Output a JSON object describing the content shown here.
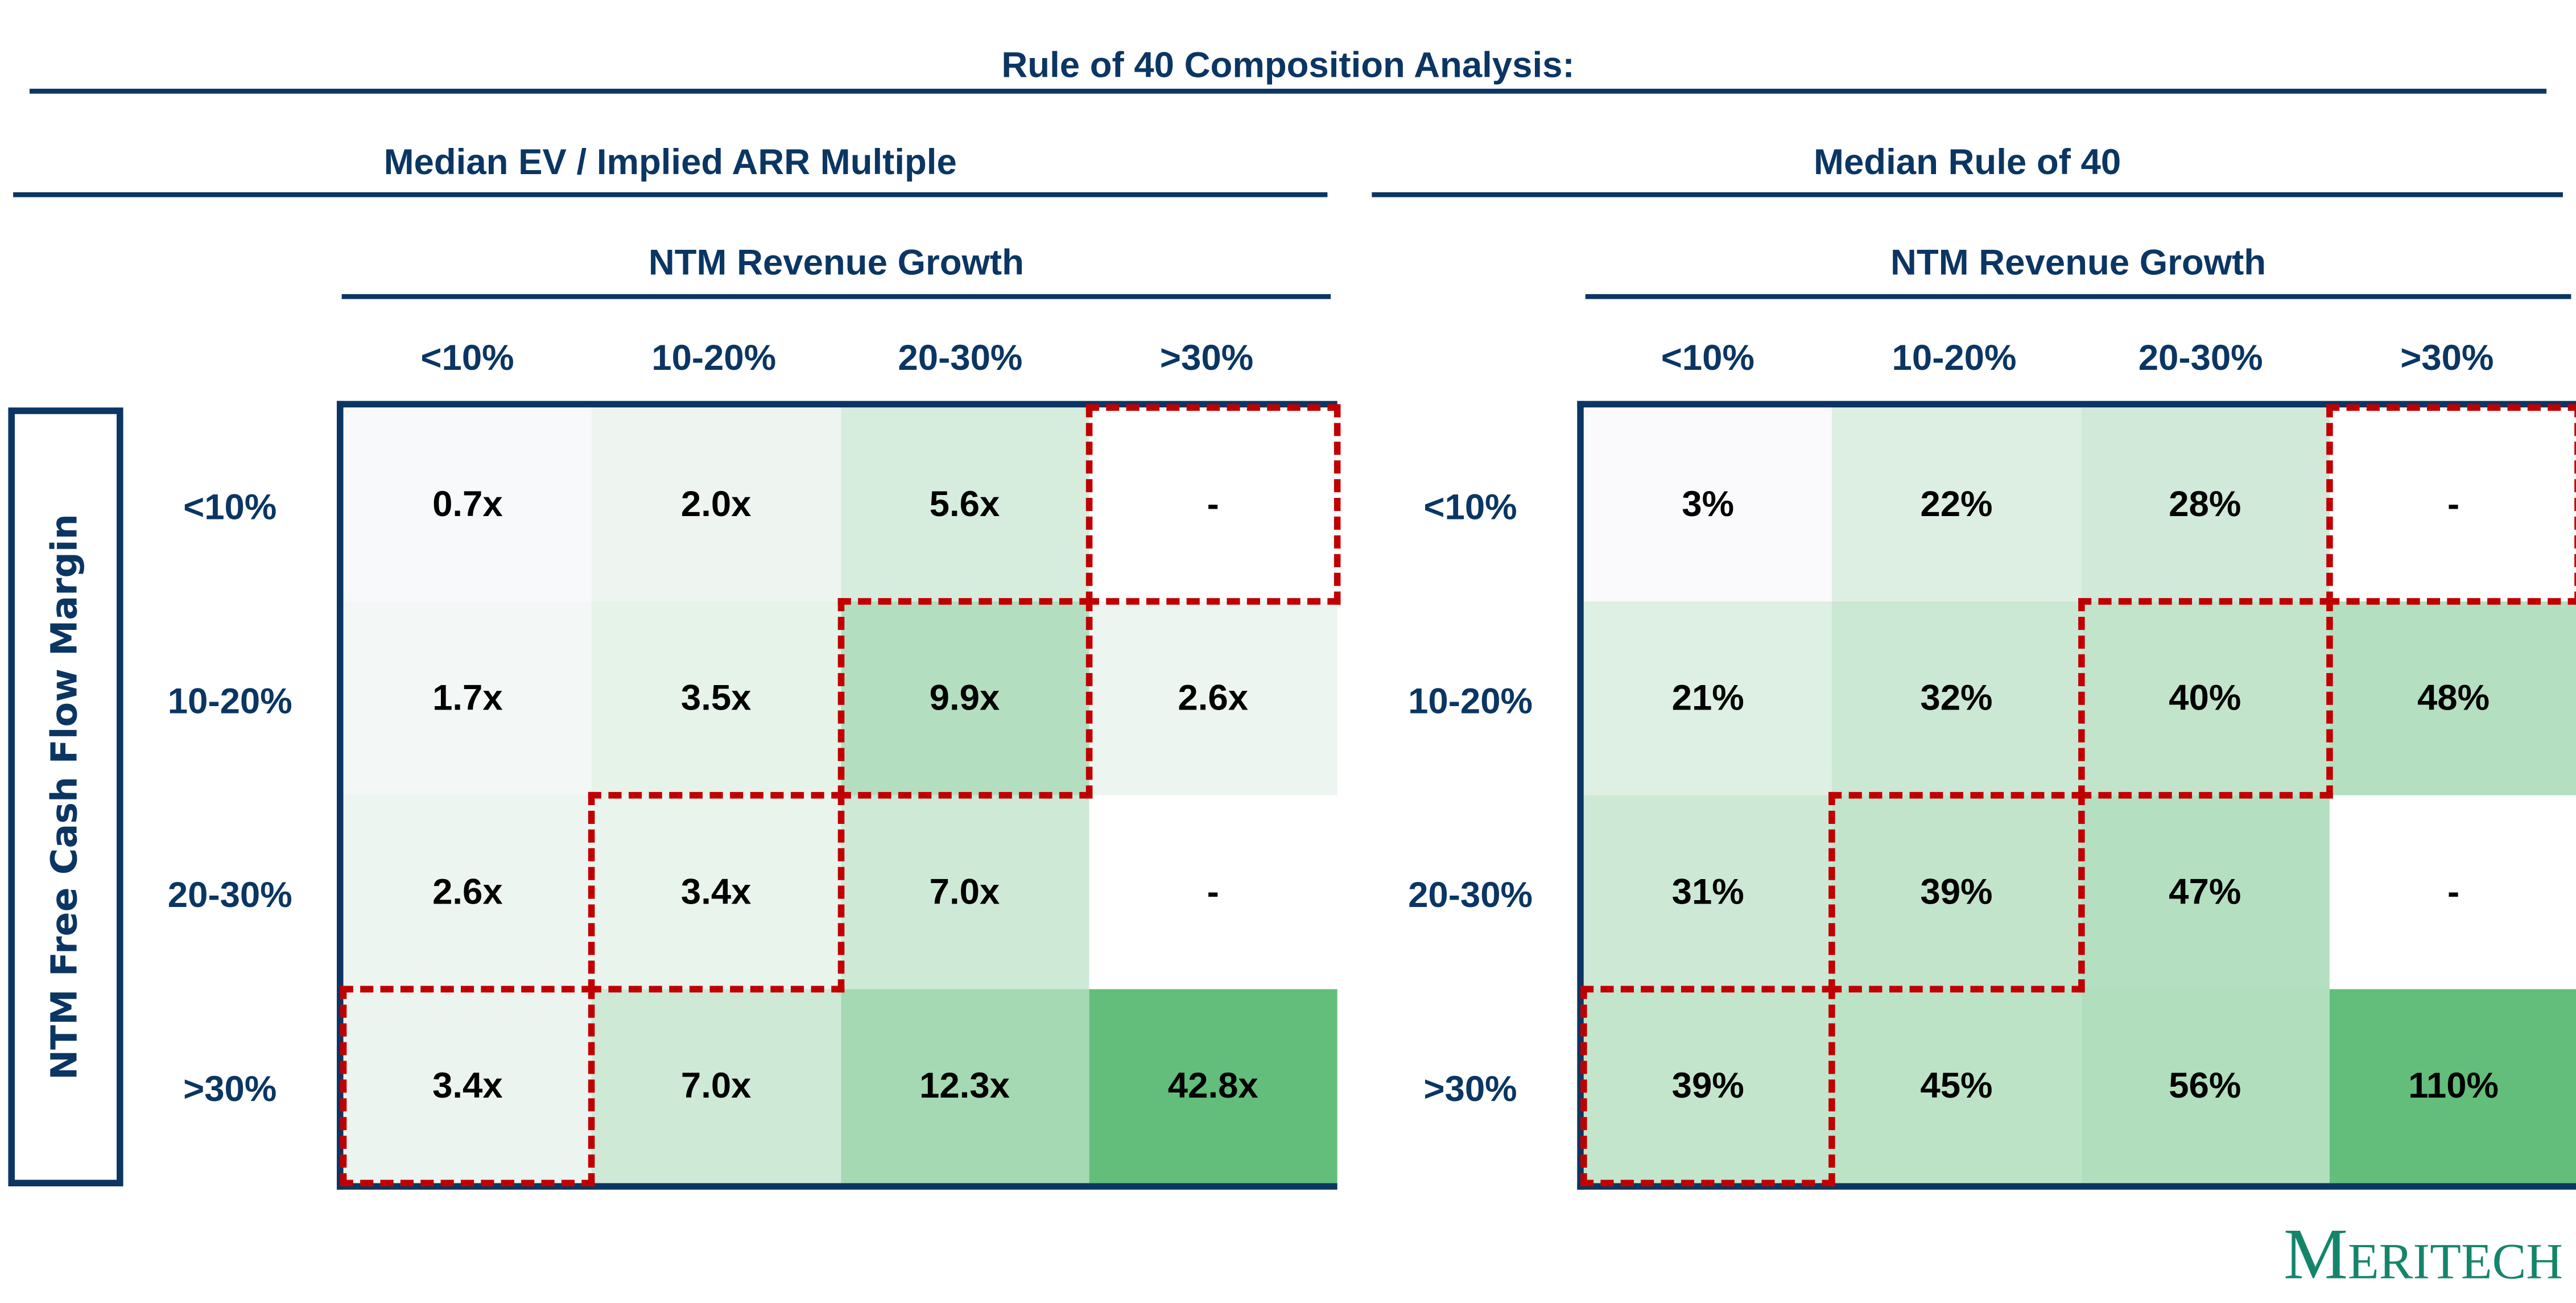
{
  "title": "Rule of 40 Composition Analysis:",
  "y_axis_label": "NTM Free Cash Flow Margin",
  "x_axis_label": "NTM Revenue Growth",
  "logo_text": "Meritech",
  "highlight_color": "#c00000",
  "chart_data": [
    {
      "type": "heatmap",
      "title": "Median EV / Implied ARR Multiple",
      "xlabel": "NTM Revenue Growth",
      "ylabel": "NTM Free Cash Flow Margin",
      "columns": [
        "<10%",
        "10-20%",
        "20-30%",
        ">30%"
      ],
      "rows": [
        "<10%",
        "10-20%",
        "20-30%",
        ">30%"
      ],
      "labels": [
        [
          "0.7x",
          "2.0x",
          "5.6x",
          "-"
        ],
        [
          "1.7x",
          "3.5x",
          "9.9x",
          "2.6x"
        ],
        [
          "2.6x",
          "3.4x",
          "7.0x",
          "-"
        ],
        [
          "3.4x",
          "7.0x",
          "12.3x",
          "42.8x"
        ]
      ],
      "values": [
        [
          0.7,
          2.0,
          5.6,
          null
        ],
        [
          1.7,
          3.5,
          9.9,
          2.6
        ],
        [
          2.6,
          3.4,
          7.0,
          null
        ],
        [
          3.4,
          7.0,
          12.3,
          42.8
        ]
      ],
      "colors": [
        [
          "#f8f9fb",
          "#eef5f1",
          "#d6ecdd",
          "#ffffff"
        ],
        [
          "#f3f7f6",
          "#e6f3e9",
          "#b3dfc0",
          "#edf5f0"
        ],
        [
          "#edf5f0",
          "#e9f4ec",
          "#cfe9d7",
          "#ffffff"
        ],
        [
          "#ebf4ee",
          "#cfe9d7",
          "#a4d9b3",
          "#63be7b"
        ]
      ],
      "highlighted": [
        [
          0,
          3
        ],
        [
          1,
          2
        ],
        [
          2,
          1
        ],
        [
          3,
          0
        ]
      ]
    },
    {
      "type": "heatmap",
      "title": "Median Rule of 40",
      "xlabel": "NTM Revenue Growth",
      "ylabel": "NTM Free Cash Flow Margin",
      "columns": [
        "<10%",
        "10-20%",
        "20-30%",
        ">30%"
      ],
      "rows": [
        "<10%",
        "10-20%",
        "20-30%",
        ">30%"
      ],
      "labels": [
        [
          "3%",
          "22%",
          "28%",
          "-"
        ],
        [
          "21%",
          "32%",
          "40%",
          "48%"
        ],
        [
          "31%",
          "39%",
          "47%",
          "-"
        ],
        [
          "39%",
          "45%",
          "56%",
          "110%"
        ]
      ],
      "values": [
        [
          3,
          22,
          28,
          null
        ],
        [
          21,
          32,
          40,
          48
        ],
        [
          31,
          39,
          47,
          null
        ],
        [
          39,
          45,
          56,
          110
        ]
      ],
      "colors": [
        [
          "#fafafc",
          "#dcefe2",
          "#d0e9d8",
          "#ffffff"
        ],
        [
          "#ddf0e3",
          "#cbe8d4",
          "#c2e4cb",
          "#b4dfc0"
        ],
        [
          "#cde9d5",
          "#c2e4cb",
          "#b5dfc1",
          "#ffffff"
        ],
        [
          "#c3e5cc",
          "#bde3c7",
          "#b1dfbe",
          "#63be7b"
        ]
      ],
      "highlighted": [
        [
          0,
          3
        ],
        [
          1,
          2
        ],
        [
          2,
          1
        ],
        [
          3,
          0
        ]
      ]
    }
  ]
}
